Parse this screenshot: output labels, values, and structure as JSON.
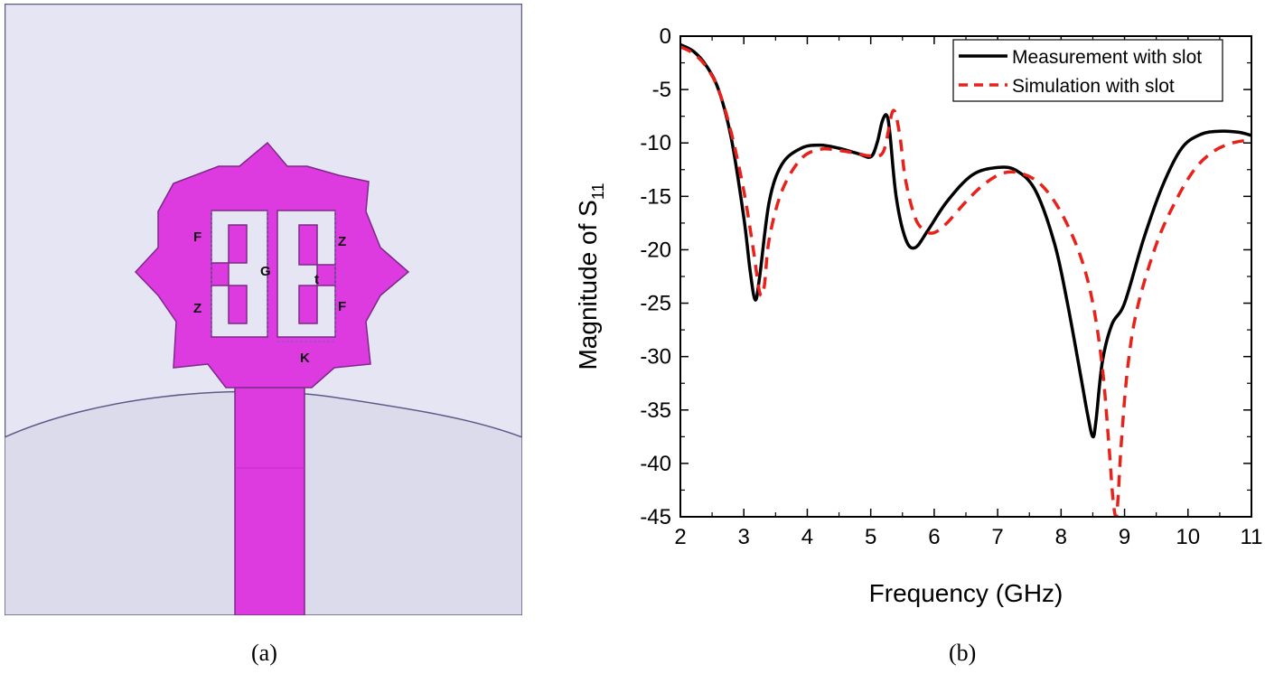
{
  "panel_a": {
    "caption": "(a)",
    "dimension_labels": {
      "f_upper": "F",
      "z_lower": "Z",
      "g": "G",
      "z_upper": "Z",
      "t": "t",
      "f_lower": "F",
      "k": "K"
    },
    "colors": {
      "background": "#e6e5f3",
      "ground": "#dcdbec",
      "patch": "#dd3ae0",
      "patch_stroke": "#7a2a8a",
      "border": "#5b5b8a"
    }
  },
  "panel_b": {
    "caption": "(b)",
    "ylabel_main": "Magnitude of S",
    "ylabel_sub": "11"
  },
  "chart_data": {
    "type": "line",
    "xlabel": "Frequency (GHz)",
    "ylabel": "Magnitude of S11",
    "xlim": [
      2,
      11
    ],
    "ylim": [
      -45,
      0
    ],
    "xticks": [
      2,
      3,
      4,
      5,
      6,
      7,
      8,
      9,
      10,
      11
    ],
    "yticks": [
      0,
      -5,
      -10,
      -15,
      -20,
      -25,
      -30,
      -35,
      -40,
      -45
    ],
    "xtick_labels": [
      "2",
      "3",
      "4",
      "5",
      "6",
      "7",
      "8",
      "9",
      "10",
      "11"
    ],
    "ytick_labels": [
      "0",
      "-5",
      "-10",
      "-15",
      "-20",
      "-25",
      "-30",
      "-35",
      "-40",
      "-45"
    ],
    "legend_position": "top-right",
    "grid": false,
    "series": [
      {
        "name": "Measurement with slot",
        "color": "#000000",
        "dash": "solid",
        "x": [
          2.0,
          2.2,
          2.4,
          2.6,
          2.8,
          3.0,
          3.1,
          3.18,
          3.25,
          3.4,
          3.6,
          3.9,
          4.2,
          4.5,
          4.8,
          5.0,
          5.1,
          5.18,
          5.25,
          5.3,
          5.4,
          5.55,
          5.7,
          5.9,
          6.2,
          6.6,
          7.0,
          7.3,
          7.6,
          7.9,
          8.1,
          8.3,
          8.42,
          8.5,
          8.55,
          8.65,
          8.8,
          9.0,
          9.3,
          9.6,
          9.9,
          10.2,
          10.5,
          10.8,
          11.0
        ],
        "y": [
          -0.8,
          -1.4,
          -2.7,
          -5.0,
          -9.5,
          -17.0,
          -22.0,
          -24.7,
          -22.5,
          -15.5,
          -12.0,
          -10.5,
          -10.2,
          -10.5,
          -11.0,
          -11.3,
          -10.0,
          -8.0,
          -7.4,
          -9.0,
          -15.0,
          -19.0,
          -19.8,
          -18.2,
          -15.5,
          -13.0,
          -12.3,
          -12.6,
          -14.5,
          -19.5,
          -25.0,
          -31.5,
          -35.5,
          -37.5,
          -36.0,
          -30.5,
          -27.0,
          -25.0,
          -19.0,
          -14.0,
          -10.5,
          -9.2,
          -8.9,
          -9.0,
          -9.3
        ]
      },
      {
        "name": "Simulation with slot",
        "color": "#e8211b",
        "dash": "dashed",
        "x": [
          2.0,
          2.2,
          2.4,
          2.6,
          2.8,
          3.0,
          3.15,
          3.25,
          3.32,
          3.4,
          3.6,
          3.9,
          4.2,
          4.5,
          4.8,
          5.0,
          5.2,
          5.35,
          5.45,
          5.55,
          5.7,
          5.85,
          6.0,
          6.2,
          6.5,
          6.8,
          7.1,
          7.4,
          7.7,
          8.0,
          8.3,
          8.5,
          8.65,
          8.75,
          8.82,
          8.87,
          8.9,
          8.95,
          9.05,
          9.2,
          9.5,
          9.8,
          10.1,
          10.4,
          10.7,
          11.0
        ],
        "y": [
          -1.0,
          -1.6,
          -2.8,
          -5.0,
          -9.0,
          -14.5,
          -20.0,
          -24.0,
          -23.5,
          -19.0,
          -14.5,
          -11.5,
          -10.6,
          -10.7,
          -11.0,
          -11.2,
          -10.8,
          -7.0,
          -9.0,
          -13.5,
          -17.0,
          -18.2,
          -18.4,
          -17.5,
          -15.5,
          -13.8,
          -12.8,
          -12.9,
          -14.0,
          -16.5,
          -20.5,
          -25.0,
          -31.0,
          -38.0,
          -43.5,
          -45.0,
          -43.0,
          -38.0,
          -31.0,
          -25.5,
          -19.5,
          -15.5,
          -12.5,
          -10.8,
          -10.0,
          -9.7
        ]
      }
    ]
  }
}
